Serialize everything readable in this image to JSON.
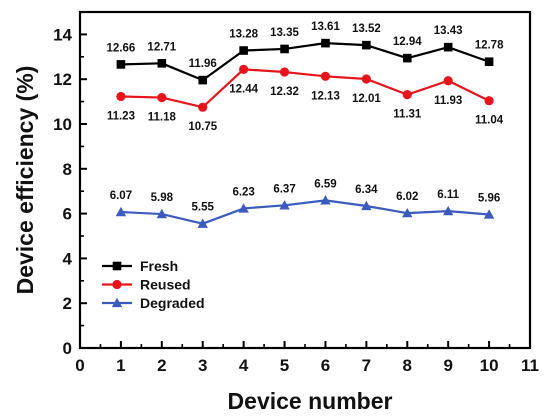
{
  "chart_data": {
    "type": "line",
    "xlabel": "Device number",
    "ylabel": "Device efficiency (%)",
    "xlim": [
      0,
      11
    ],
    "ylim": [
      0,
      15
    ],
    "x_ticks": [
      0,
      1,
      2,
      3,
      4,
      5,
      6,
      7,
      8,
      9,
      10,
      11
    ],
    "y_ticks": [
      0,
      2,
      4,
      6,
      8,
      10,
      12,
      14
    ],
    "grid": false,
    "legend_position": "bottom-left",
    "x": [
      1,
      2,
      3,
      4,
      5,
      6,
      7,
      8,
      9,
      10
    ],
    "series": [
      {
        "name": "Fresh",
        "values": [
          12.66,
          12.71,
          11.96,
          13.28,
          13.35,
          13.61,
          13.52,
          12.94,
          13.43,
          12.78
        ],
        "labels": [
          "12.66",
          "12.71",
          "11.96",
          "13.28",
          "13.35",
          "13.61",
          "13.52",
          "12.94",
          "13.43",
          "12.78"
        ],
        "color": "#000000",
        "marker": "square"
      },
      {
        "name": "Reused",
        "values": [
          11.23,
          11.18,
          10.75,
          12.44,
          12.32,
          12.13,
          12.01,
          11.31,
          11.93,
          11.04
        ],
        "labels": [
          "11.23",
          "11.18",
          "10.75",
          "12.44",
          "12.32",
          "12.13",
          "12.01",
          "11.31",
          "11.93",
          "11.04"
        ],
        "color": "#e8141c",
        "marker": "circle"
      },
      {
        "name": "Degraded",
        "values": [
          6.07,
          5.98,
          5.55,
          6.23,
          6.37,
          6.59,
          6.34,
          6.02,
          6.11,
          5.96
        ],
        "labels": [
          "6.07",
          "5.98",
          "5.55",
          "6.23",
          "6.37",
          "6.59",
          "6.34",
          "6.02",
          "6.11",
          "5.96"
        ],
        "color": "#3b5bbf",
        "marker": "triangle"
      }
    ]
  }
}
